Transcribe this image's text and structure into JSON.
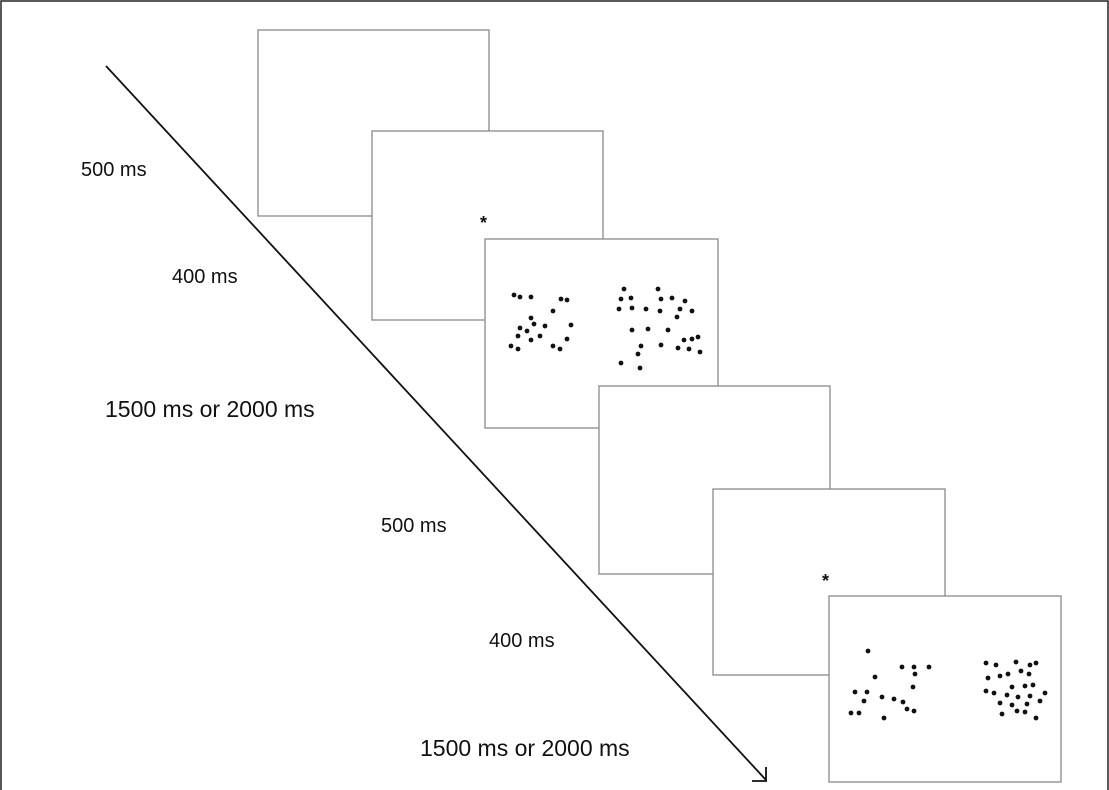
{
  "labels": {
    "d1": "500 ms",
    "d2": "400 ms",
    "d3": "1500 ms or 2000 ms",
    "d4": "500 ms",
    "d5": "400 ms",
    "d6": "1500 ms or 2000 ms"
  },
  "fixation_symbol": "*",
  "trial_sequence": [
    {
      "stimulus": "blank screen",
      "duration": "500 ms"
    },
    {
      "stimulus": "fixation",
      "duration": "400 ms"
    },
    {
      "stimulus": "dot arrays",
      "duration": "1500 ms or 2000 ms"
    },
    {
      "stimulus": "blank screen",
      "duration": "500 ms"
    },
    {
      "stimulus": "fixation",
      "duration": "400 ms"
    },
    {
      "stimulus": "dot arrays",
      "duration": "1500 ms or 2000 ms"
    }
  ],
  "colors": {
    "frame": "#8a8a8a",
    "dot": "#111111",
    "arrow": "#111111",
    "border": "#222222"
  }
}
